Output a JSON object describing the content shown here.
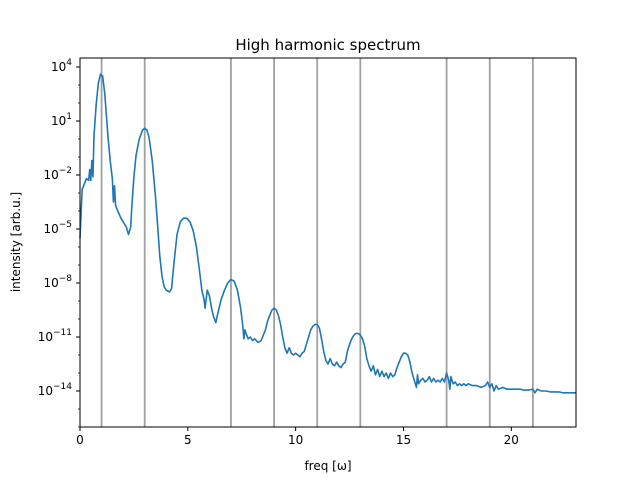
{
  "chart_data": {
    "type": "line",
    "title": "High harmonic spectrum",
    "xlabel": "freq [ω]",
    "ylabel": "intensity [arb.u.]",
    "xlim": [
      0,
      23
    ],
    "ylim_log10": [
      -16,
      4.5
    ],
    "y_scale": "log",
    "x_ticks": [
      0,
      5,
      10,
      15,
      20
    ],
    "x_tick_labels": [
      "0",
      "5",
      "10",
      "15",
      "20"
    ],
    "y_ticks_log10": [
      -14,
      -11,
      -8,
      -5,
      -2,
      1,
      4
    ],
    "y_tick_labels": [
      {
        "base": "10",
        "exp": "−14"
      },
      {
        "base": "10",
        "exp": "−11"
      },
      {
        "base": "10",
        "exp": "−8"
      },
      {
        "base": "10",
        "exp": "−5"
      },
      {
        "base": "10",
        "exp": "−2"
      },
      {
        "base": "10",
        "exp": "1"
      },
      {
        "base": "10",
        "exp": "4"
      }
    ],
    "harmonic_lines": [
      1,
      3,
      7,
      9,
      11,
      13,
      17,
      19,
      21
    ],
    "grid": false,
    "colors": {
      "series": "#1f77b4",
      "harmonic_line": "#a0a0a0"
    },
    "series": [
      {
        "x_log10_y": [
          [
            0.0,
            -5.5
          ],
          [
            0.1,
            -2.8
          ],
          [
            0.3,
            -2.2
          ],
          [
            0.4,
            -2.3
          ],
          [
            0.45,
            -1.7
          ],
          [
            0.5,
            -2.3
          ],
          [
            0.55,
            -1.2
          ],
          [
            0.6,
            -2.1
          ],
          [
            0.65,
            0.2
          ],
          [
            0.75,
            1.9
          ],
          [
            0.85,
            3.1
          ],
          [
            0.95,
            3.6
          ],
          [
            1.05,
            3.5
          ],
          [
            1.15,
            2.5
          ],
          [
            1.3,
            0.1
          ],
          [
            1.4,
            -1.2
          ],
          [
            1.5,
            -2.2
          ],
          [
            1.55,
            -3.5
          ],
          [
            1.6,
            -2.6
          ],
          [
            1.65,
            -3.7
          ],
          [
            1.75,
            -4.0
          ],
          [
            1.9,
            -4.4
          ],
          [
            2.05,
            -4.7
          ],
          [
            2.15,
            -4.9
          ],
          [
            2.25,
            -5.3
          ],
          [
            2.35,
            -4.9
          ],
          [
            2.4,
            -3.8
          ],
          [
            2.5,
            -2.1
          ],
          [
            2.6,
            -0.9
          ],
          [
            2.75,
            0.0
          ],
          [
            2.9,
            0.5
          ],
          [
            3.0,
            0.6
          ],
          [
            3.1,
            0.5
          ],
          [
            3.2,
            0.1
          ],
          [
            3.35,
            -1.2
          ],
          [
            3.5,
            -3.2
          ],
          [
            3.6,
            -4.8
          ],
          [
            3.7,
            -6.5
          ],
          [
            3.8,
            -7.6
          ],
          [
            3.9,
            -8.2
          ],
          [
            4.0,
            -8.4
          ],
          [
            4.15,
            -8.5
          ],
          [
            4.25,
            -8.3
          ],
          [
            4.3,
            -7.6
          ],
          [
            4.4,
            -6.4
          ],
          [
            4.5,
            -5.3
          ],
          [
            4.65,
            -4.6
          ],
          [
            4.8,
            -4.4
          ],
          [
            4.95,
            -4.4
          ],
          [
            5.1,
            -4.6
          ],
          [
            5.25,
            -5.1
          ],
          [
            5.4,
            -6.0
          ],
          [
            5.55,
            -7.4
          ],
          [
            5.65,
            -8.4
          ],
          [
            5.75,
            -8.9
          ],
          [
            5.8,
            -9.4
          ],
          [
            5.85,
            -8.9
          ],
          [
            5.9,
            -8.4
          ],
          [
            6.0,
            -8.7
          ],
          [
            6.1,
            -9.4
          ],
          [
            6.2,
            -9.9
          ],
          [
            6.3,
            -10.2
          ],
          [
            6.35,
            -9.9
          ],
          [
            6.45,
            -9.4
          ],
          [
            6.55,
            -8.9
          ],
          [
            6.7,
            -8.4
          ],
          [
            6.85,
            -8.0
          ],
          [
            7.0,
            -7.8
          ],
          [
            7.15,
            -7.9
          ],
          [
            7.3,
            -8.4
          ],
          [
            7.45,
            -9.4
          ],
          [
            7.55,
            -10.4
          ],
          [
            7.6,
            -11.1
          ],
          [
            7.65,
            -10.6
          ],
          [
            7.7,
            -10.8
          ],
          [
            7.8,
            -11.1
          ],
          [
            7.9,
            -11.0
          ],
          [
            8.0,
            -11.2
          ],
          [
            8.1,
            -11.1
          ],
          [
            8.25,
            -11.3
          ],
          [
            8.4,
            -11.2
          ],
          [
            8.5,
            -10.9
          ],
          [
            8.6,
            -10.6
          ],
          [
            8.7,
            -10.1
          ],
          [
            8.8,
            -9.8
          ],
          [
            8.9,
            -9.5
          ],
          [
            9.0,
            -9.4
          ],
          [
            9.1,
            -9.5
          ],
          [
            9.2,
            -9.8
          ],
          [
            9.3,
            -10.3
          ],
          [
            9.4,
            -11.0
          ],
          [
            9.5,
            -11.6
          ],
          [
            9.6,
            -11.9
          ],
          [
            9.7,
            -11.6
          ],
          [
            9.8,
            -11.9
          ],
          [
            9.9,
            -12.0
          ],
          [
            10.0,
            -11.9
          ],
          [
            10.1,
            -12.0
          ],
          [
            10.2,
            -12.1
          ],
          [
            10.3,
            -11.9
          ],
          [
            10.4,
            -11.8
          ],
          [
            10.5,
            -11.4
          ],
          [
            10.6,
            -11.0
          ],
          [
            10.7,
            -10.6
          ],
          [
            10.8,
            -10.4
          ],
          [
            10.9,
            -10.3
          ],
          [
            11.0,
            -10.3
          ],
          [
            11.1,
            -10.5
          ],
          [
            11.2,
            -11.1
          ],
          [
            11.3,
            -11.8
          ],
          [
            11.4,
            -12.3
          ],
          [
            11.5,
            -12.5
          ],
          [
            11.6,
            -12.2
          ],
          [
            11.7,
            -12.5
          ],
          [
            11.8,
            -12.6
          ],
          [
            11.9,
            -12.4
          ],
          [
            12.0,
            -12.6
          ],
          [
            12.1,
            -12.7
          ],
          [
            12.2,
            -12.5
          ],
          [
            12.3,
            -12.4
          ],
          [
            12.4,
            -11.8
          ],
          [
            12.5,
            -11.4
          ],
          [
            12.6,
            -11.1
          ],
          [
            12.7,
            -10.9
          ],
          [
            12.8,
            -10.8
          ],
          [
            12.9,
            -10.8
          ],
          [
            13.0,
            -10.9
          ],
          [
            13.1,
            -11.1
          ],
          [
            13.2,
            -11.5
          ],
          [
            13.3,
            -12.2
          ],
          [
            13.4,
            -12.6
          ],
          [
            13.5,
            -12.9
          ],
          [
            13.6,
            -12.6
          ],
          [
            13.7,
            -13.1
          ],
          [
            13.8,
            -12.8
          ],
          [
            13.9,
            -13.2
          ],
          [
            14.0,
            -12.9
          ],
          [
            14.1,
            -13.2
          ],
          [
            14.2,
            -13.0
          ],
          [
            14.3,
            -13.3
          ],
          [
            14.4,
            -13.0
          ],
          [
            14.5,
            -13.2
          ],
          [
            14.6,
            -13.1
          ],
          [
            14.7,
            -12.7
          ],
          [
            14.8,
            -12.4
          ],
          [
            14.9,
            -12.1
          ],
          [
            15.0,
            -11.9
          ],
          [
            15.1,
            -11.9
          ],
          [
            15.2,
            -12.0
          ],
          [
            15.3,
            -12.4
          ],
          [
            15.4,
            -13.0
          ],
          [
            15.5,
            -13.4
          ],
          [
            15.6,
            -13.8
          ],
          [
            15.65,
            -13.1
          ],
          [
            15.7,
            -13.6
          ],
          [
            15.8,
            -13.4
          ],
          [
            15.9,
            -13.3
          ],
          [
            16.0,
            -13.5
          ],
          [
            16.1,
            -13.4
          ],
          [
            16.2,
            -13.2
          ],
          [
            16.3,
            -13.5
          ],
          [
            16.4,
            -13.3
          ],
          [
            16.5,
            -13.5
          ],
          [
            16.6,
            -13.4
          ],
          [
            16.7,
            -13.5
          ],
          [
            16.8,
            -13.3
          ],
          [
            16.9,
            -13.5
          ],
          [
            17.0,
            -13.0
          ],
          [
            17.1,
            -13.4
          ],
          [
            17.15,
            -13.9
          ],
          [
            17.2,
            -13.2
          ],
          [
            17.3,
            -13.6
          ],
          [
            17.4,
            -13.5
          ],
          [
            17.5,
            -13.7
          ],
          [
            17.6,
            -13.6
          ],
          [
            17.7,
            -13.7
          ],
          [
            17.8,
            -13.6
          ],
          [
            17.9,
            -13.7
          ],
          [
            18.0,
            -13.6
          ],
          [
            18.2,
            -13.7
          ],
          [
            18.4,
            -13.7
          ],
          [
            18.6,
            -13.8
          ],
          [
            18.8,
            -13.7
          ],
          [
            18.9,
            -13.5
          ],
          [
            19.0,
            -13.8
          ],
          [
            19.1,
            -13.6
          ],
          [
            19.2,
            -14.0
          ],
          [
            19.3,
            -13.7
          ],
          [
            19.4,
            -13.9
          ],
          [
            19.6,
            -13.8
          ],
          [
            19.8,
            -13.9
          ],
          [
            20.0,
            -13.9
          ],
          [
            20.2,
            -13.9
          ],
          [
            20.4,
            -13.9
          ],
          [
            20.6,
            -13.95
          ],
          [
            20.8,
            -13.95
          ],
          [
            21.0,
            -13.9
          ],
          [
            21.1,
            -14.1
          ],
          [
            21.2,
            -13.9
          ],
          [
            21.4,
            -14.0
          ],
          [
            21.6,
            -14.0
          ],
          [
            21.8,
            -14.05
          ],
          [
            22.0,
            -14.05
          ],
          [
            22.2,
            -14.05
          ],
          [
            22.4,
            -14.1
          ],
          [
            22.6,
            -14.1
          ],
          [
            22.8,
            -14.1
          ],
          [
            23.0,
            -14.1
          ]
        ]
      }
    ]
  }
}
